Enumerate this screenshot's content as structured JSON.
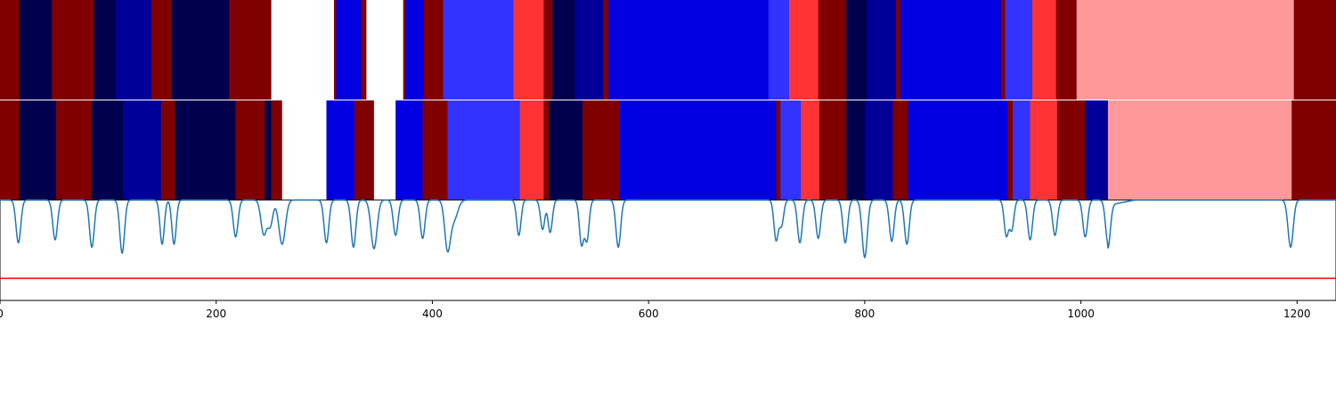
{
  "chart_data": [
    {
      "type": "heatmap",
      "panel": "upper segmentation",
      "colormap": "seismic",
      "xlim": [
        0,
        1236
      ],
      "segments": [
        {
          "start": 0,
          "end": 18,
          "color": "#800000"
        },
        {
          "start": 18,
          "end": 48,
          "color": "#00004d"
        },
        {
          "start": 48,
          "end": 87,
          "color": "#800000"
        },
        {
          "start": 87,
          "end": 107,
          "color": "#00004d"
        },
        {
          "start": 107,
          "end": 140,
          "color": "#000099"
        },
        {
          "start": 140,
          "end": 159,
          "color": "#800000"
        },
        {
          "start": 159,
          "end": 212,
          "color": "#00004d"
        },
        {
          "start": 212,
          "end": 251,
          "color": "#800000"
        },
        {
          "start": 251,
          "end": 309,
          "color": "#ffffff"
        },
        {
          "start": 309,
          "end": 311,
          "color": "#800000"
        },
        {
          "start": 311,
          "end": 334,
          "color": "#0000e0"
        },
        {
          "start": 334,
          "end": 339,
          "color": "#800000"
        },
        {
          "start": 339,
          "end": 373,
          "color": "#ffffff"
        },
        {
          "start": 373,
          "end": 375,
          "color": "#800000"
        },
        {
          "start": 375,
          "end": 392,
          "color": "#0000e0"
        },
        {
          "start": 392,
          "end": 410,
          "color": "#800000"
        },
        {
          "start": 410,
          "end": 475,
          "color": "#3333ff"
        },
        {
          "start": 475,
          "end": 503,
          "color": "#ff3333"
        },
        {
          "start": 503,
          "end": 511,
          "color": "#800000"
        },
        {
          "start": 511,
          "end": 532,
          "color": "#00004d"
        },
        {
          "start": 532,
          "end": 558,
          "color": "#000099"
        },
        {
          "start": 558,
          "end": 563,
          "color": "#800000"
        },
        {
          "start": 563,
          "end": 711,
          "color": "#0000e0"
        },
        {
          "start": 711,
          "end": 730,
          "color": "#3333ff"
        },
        {
          "start": 730,
          "end": 757,
          "color": "#ff3333"
        },
        {
          "start": 757,
          "end": 783,
          "color": "#800000"
        },
        {
          "start": 783,
          "end": 802,
          "color": "#00004d"
        },
        {
          "start": 802,
          "end": 829,
          "color": "#000099"
        },
        {
          "start": 829,
          "end": 833,
          "color": "#800000"
        },
        {
          "start": 833,
          "end": 926,
          "color": "#0000e0"
        },
        {
          "start": 926,
          "end": 930,
          "color": "#800000"
        },
        {
          "start": 930,
          "end": 955,
          "color": "#3333ff"
        },
        {
          "start": 955,
          "end": 977,
          "color": "#ff3333"
        },
        {
          "start": 977,
          "end": 996,
          "color": "#800000"
        },
        {
          "start": 996,
          "end": 1197,
          "color": "#ff9999"
        },
        {
          "start": 1197,
          "end": 1236,
          "color": "#800000"
        }
      ]
    },
    {
      "type": "heatmap",
      "panel": "lower segmentation",
      "colormap": "seismic",
      "xlim": [
        0,
        1236
      ],
      "segments": [
        {
          "start": 0,
          "end": 18,
          "color": "#800000"
        },
        {
          "start": 18,
          "end": 52,
          "color": "#00004d"
        },
        {
          "start": 52,
          "end": 85,
          "color": "#800000"
        },
        {
          "start": 85,
          "end": 114,
          "color": "#00004d"
        },
        {
          "start": 114,
          "end": 149,
          "color": "#000099"
        },
        {
          "start": 149,
          "end": 162,
          "color": "#800000"
        },
        {
          "start": 162,
          "end": 218,
          "color": "#00004d"
        },
        {
          "start": 218,
          "end": 245,
          "color": "#800000"
        },
        {
          "start": 245,
          "end": 251,
          "color": "#00004d"
        },
        {
          "start": 251,
          "end": 261,
          "color": "#800000"
        },
        {
          "start": 261,
          "end": 302,
          "color": "#ffffff"
        },
        {
          "start": 302,
          "end": 328,
          "color": "#0000e0"
        },
        {
          "start": 328,
          "end": 346,
          "color": "#800000"
        },
        {
          "start": 346,
          "end": 366,
          "color": "#ffffff"
        },
        {
          "start": 366,
          "end": 391,
          "color": "#0000e0"
        },
        {
          "start": 391,
          "end": 414,
          "color": "#800000"
        },
        {
          "start": 414,
          "end": 481,
          "color": "#3333ff"
        },
        {
          "start": 481,
          "end": 503,
          "color": "#ff3333"
        },
        {
          "start": 503,
          "end": 508,
          "color": "#800000"
        },
        {
          "start": 508,
          "end": 539,
          "color": "#00004d"
        },
        {
          "start": 539,
          "end": 573,
          "color": "#800000"
        },
        {
          "start": 573,
          "end": 718,
          "color": "#0000e0"
        },
        {
          "start": 718,
          "end": 722,
          "color": "#800000"
        },
        {
          "start": 722,
          "end": 741,
          "color": "#3333ff"
        },
        {
          "start": 741,
          "end": 758,
          "color": "#ff3333"
        },
        {
          "start": 758,
          "end": 783,
          "color": "#800000"
        },
        {
          "start": 783,
          "end": 800,
          "color": "#00004d"
        },
        {
          "start": 800,
          "end": 826,
          "color": "#000099"
        },
        {
          "start": 826,
          "end": 840,
          "color": "#800000"
        },
        {
          "start": 840,
          "end": 932,
          "color": "#0000e0"
        },
        {
          "start": 932,
          "end": 937,
          "color": "#800000"
        },
        {
          "start": 937,
          "end": 953,
          "color": "#3333ff"
        },
        {
          "start": 953,
          "end": 978,
          "color": "#ff3333"
        },
        {
          "start": 978,
          "end": 1004,
          "color": "#800000"
        },
        {
          "start": 1004,
          "end": 1025,
          "color": "#000099"
        },
        {
          "start": 1025,
          "end": 1195,
          "color": "#ff9999"
        },
        {
          "start": 1195,
          "end": 1236,
          "color": "#800000"
        }
      ]
    },
    {
      "type": "line",
      "panel": "signal",
      "xlim": [
        0,
        1236
      ],
      "ylim": [
        -0.68,
        0.0
      ],
      "grid": false,
      "xticks": [
        0,
        200,
        400,
        600,
        800,
        1000,
        1200
      ],
      "xtick_labels": [
        "0",
        "200",
        "400",
        "600",
        "800",
        "1000",
        "1200"
      ],
      "baseline": 0.0,
      "series": [
        {
          "color": "#1f77b4",
          "dips": [
            {
              "x": 17,
              "depth": 0.29,
              "width": 2.2
            },
            {
              "x": 51,
              "depth": 0.27,
              "width": 2.2
            },
            {
              "x": 85,
              "depth": 0.32,
              "width": 2.2
            },
            {
              "x": 113,
              "depth": 0.36,
              "width": 2.2
            },
            {
              "x": 150,
              "depth": 0.3,
              "width": 2.0
            },
            {
              "x": 161,
              "depth": 0.3,
              "width": 2.0
            },
            {
              "x": 218,
              "depth": 0.25,
              "width": 2.2
            },
            {
              "x": 244,
              "depth": 0.23,
              "width": 2.6
            },
            {
              "x": 250,
              "depth": 0.17,
              "width": 2.4
            },
            {
              "x": 261,
              "depth": 0.3,
              "width": 3.0
            },
            {
              "x": 302,
              "depth": 0.29,
              "width": 2.2
            },
            {
              "x": 327,
              "depth": 0.32,
              "width": 2.2
            },
            {
              "x": 346,
              "depth": 0.33,
              "width": 2.8
            },
            {
              "x": 366,
              "depth": 0.24,
              "width": 2.2
            },
            {
              "x": 391,
              "depth": 0.26,
              "width": 2.2
            },
            {
              "x": 414,
              "depth": 0.32,
              "width": 2.6
            },
            {
              "x": 420,
              "depth": 0.13,
              "width": 3.5
            },
            {
              "x": 480,
              "depth": 0.24,
              "width": 2.0
            },
            {
              "x": 502,
              "depth": 0.2,
              "width": 2.0
            },
            {
              "x": 509,
              "depth": 0.22,
              "width": 2.0
            },
            {
              "x": 538,
              "depth": 0.3,
              "width": 2.0
            },
            {
              "x": 543,
              "depth": 0.27,
              "width": 2.0
            },
            {
              "x": 572,
              "depth": 0.32,
              "width": 2.2
            },
            {
              "x": 718,
              "depth": 0.27,
              "width": 2.0
            },
            {
              "x": 723,
              "depth": 0.17,
              "width": 2.0
            },
            {
              "x": 740,
              "depth": 0.29,
              "width": 2.2
            },
            {
              "x": 757,
              "depth": 0.26,
              "width": 2.2
            },
            {
              "x": 782,
              "depth": 0.29,
              "width": 2.2
            },
            {
              "x": 800,
              "depth": 0.39,
              "width": 2.4
            },
            {
              "x": 825,
              "depth": 0.28,
              "width": 2.2
            },
            {
              "x": 839,
              "depth": 0.3,
              "width": 2.2
            },
            {
              "x": 931,
              "depth": 0.24,
              "width": 2.0
            },
            {
              "x": 936,
              "depth": 0.2,
              "width": 2.0
            },
            {
              "x": 953,
              "depth": 0.27,
              "width": 2.2
            },
            {
              "x": 976,
              "depth": 0.24,
              "width": 2.2
            },
            {
              "x": 1004,
              "depth": 0.25,
              "width": 2.2
            },
            {
              "x": 1025,
              "depth": 0.29,
              "width": 2.2
            },
            {
              "x": 1194,
              "depth": 0.32,
              "width": 2.4
            }
          ],
          "ramps": [
            {
              "x": 1025,
              "drop": 0.035,
              "length": 25
            }
          ]
        },
        {
          "color": "#ff0000",
          "constant": -0.53
        }
      ]
    }
  ]
}
